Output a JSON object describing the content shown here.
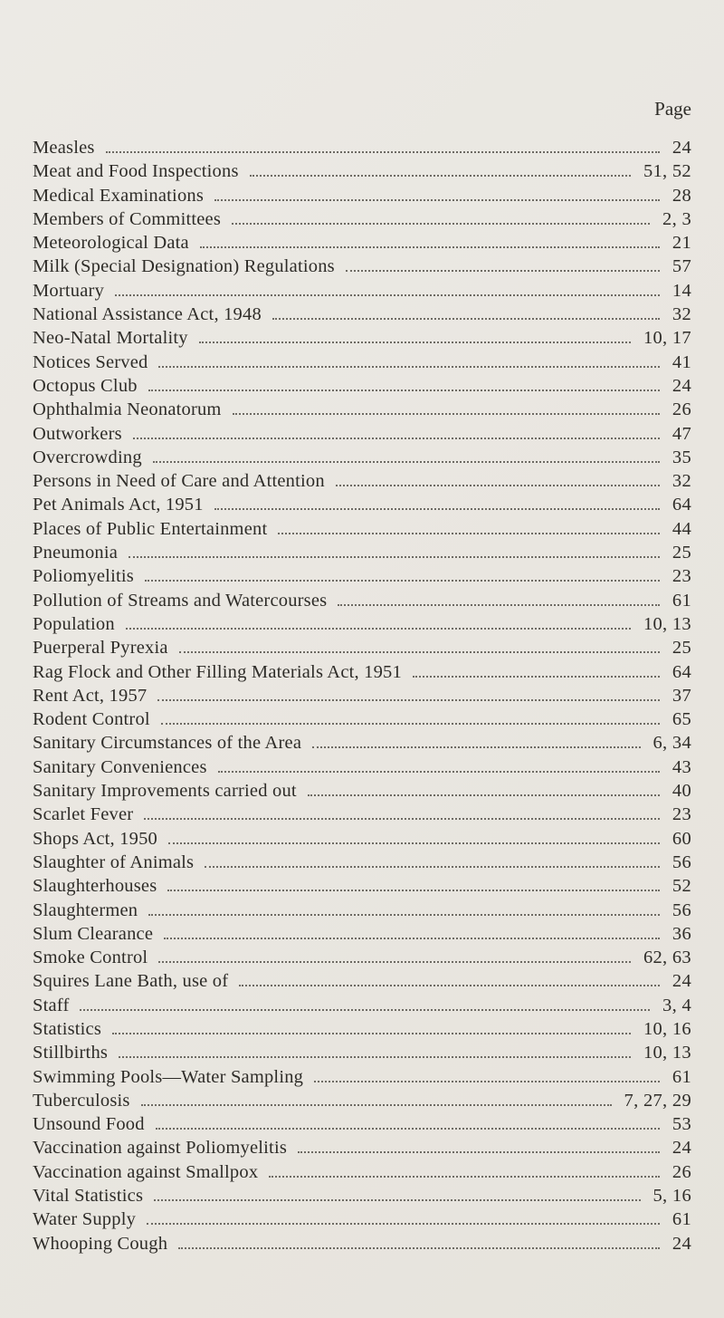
{
  "page": {
    "header_label": "Page",
    "entries": [
      {
        "title": "Measles",
        "pages": "24"
      },
      {
        "title": "Meat and Food Inspections",
        "pages": "51, 52"
      },
      {
        "title": "Medical Examinations",
        "pages": "28"
      },
      {
        "title": "Members of Committees",
        "pages": "2, 3"
      },
      {
        "title": "Meteorological Data",
        "pages": "21"
      },
      {
        "title": "Milk (Special Designation) Regulations",
        "pages": "57"
      },
      {
        "title": "Mortuary",
        "pages": "14"
      },
      {
        "title": "National Assistance Act, 1948",
        "pages": "32"
      },
      {
        "title": "Neo-Natal Mortality",
        "pages": "10, 17"
      },
      {
        "title": "Notices Served",
        "pages": "41"
      },
      {
        "title": "Octopus Club",
        "pages": "24"
      },
      {
        "title": "Ophthalmia Neonatorum",
        "pages": "26"
      },
      {
        "title": "Outworkers",
        "pages": "47"
      },
      {
        "title": "Overcrowding",
        "pages": "35"
      },
      {
        "title": "Persons in Need of Care and Attention",
        "pages": "32"
      },
      {
        "title": "Pet Animals Act, 1951",
        "pages": "64"
      },
      {
        "title": "Places of Public Entertainment",
        "pages": "44"
      },
      {
        "title": "Pneumonia",
        "pages": "25"
      },
      {
        "title": "Poliomyelitis",
        "pages": "23"
      },
      {
        "title": "Pollution of Streams and Watercourses",
        "pages": "61"
      },
      {
        "title": "Population",
        "pages": "10, 13"
      },
      {
        "title": "Puerperal Pyrexia",
        "pages": "25"
      },
      {
        "title": "Rag Flock and Other Filling Materials Act, 1951",
        "pages": "64"
      },
      {
        "title": "Rent Act, 1957",
        "pages": "37"
      },
      {
        "title": "Rodent Control",
        "pages": "65"
      },
      {
        "title": "Sanitary Circumstances of the Area",
        "pages": "6, 34"
      },
      {
        "title": "Sanitary Conveniences",
        "pages": "43"
      },
      {
        "title": "Sanitary Improvements carried out",
        "pages": "40"
      },
      {
        "title": "Scarlet Fever",
        "pages": "23"
      },
      {
        "title": "Shops Act, 1950",
        "pages": "60"
      },
      {
        "title": "Slaughter of Animals",
        "pages": "56"
      },
      {
        "title": "Slaughterhouses",
        "pages": "52"
      },
      {
        "title": "Slaughtermen",
        "pages": "56"
      },
      {
        "title": "Slum Clearance",
        "pages": "36"
      },
      {
        "title": "Smoke Control",
        "pages": "62, 63"
      },
      {
        "title": "Squires Lane Bath, use of",
        "pages": "24"
      },
      {
        "title": "Staff",
        "pages": "3, 4"
      },
      {
        "title": "Statistics",
        "pages": "10, 16"
      },
      {
        "title": "Stillbirths",
        "pages": "10, 13"
      },
      {
        "title": "Swimming Pools—Water Sampling",
        "pages": "61"
      },
      {
        "title": "Tuberculosis",
        "pages": "7, 27, 29"
      },
      {
        "title": "Unsound Food",
        "pages": "53"
      },
      {
        "title": "Vaccination against Poliomyelitis",
        "pages": "24"
      },
      {
        "title": "Vaccination against Smallpox",
        "pages": "26"
      },
      {
        "title": "Vital Statistics",
        "pages": "5, 16"
      },
      {
        "title": "Water Supply",
        "pages": "61"
      },
      {
        "title": "Whooping Cough",
        "pages": "24"
      }
    ]
  }
}
